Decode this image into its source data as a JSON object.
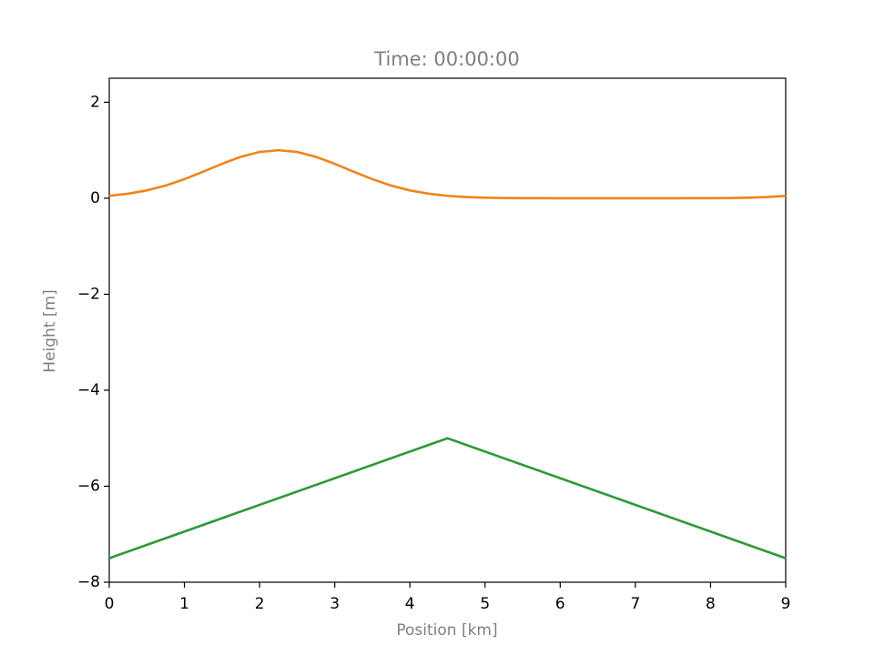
{
  "chart_data": {
    "type": "line",
    "title": "Time: 00:00:00",
    "x_label": "Position [km]",
    "y_label": "Height [m]",
    "series": [
      {
        "color": "#f0831c",
        "x": [
          0,
          0.25,
          0.5,
          0.75,
          1,
          1.25,
          1.5,
          1.75,
          2,
          2.25,
          2.5,
          2.75,
          3,
          3.25,
          3.5,
          3.75,
          4,
          4.25,
          4.5,
          4.75,
          5,
          5.25,
          5.5,
          5.75,
          6,
          6.25,
          6.5,
          6.75,
          7,
          7.25,
          7.5,
          7.75,
          8,
          8.25,
          8.5,
          8.75,
          9
        ],
        "values": [
          0.05,
          0.094,
          0.163,
          0.264,
          0.397,
          0.553,
          0.717,
          0.863,
          0.964,
          1,
          0.964,
          0.863,
          0.717,
          0.553,
          0.397,
          0.264,
          0.163,
          0.094,
          0.05,
          0.025,
          0.011,
          0.005,
          0.002,
          0.001,
          0,
          0,
          0,
          0,
          0,
          0,
          0,
          0.001,
          0.002,
          0.005,
          0.011,
          0.025,
          0.05
        ]
      },
      {
        "color": "#2c9a38",
        "x": [
          0,
          4.5,
          9
        ],
        "values": [
          -7.5,
          -5,
          -7.5
        ]
      }
    ],
    "xlim": [
      0,
      9
    ],
    "xticks": [
      0,
      1,
      2,
      3,
      4,
      5,
      6,
      7,
      8,
      9
    ],
    "ylim": [
      -8,
      2.5
    ],
    "yticks": [
      {
        "value": -8,
        "label": "−8"
      },
      {
        "value": -6,
        "label": "−6"
      },
      {
        "value": -4,
        "label": "−4"
      },
      {
        "value": -2,
        "label": "−2"
      },
      0,
      2
    ],
    "grid": false
  }
}
